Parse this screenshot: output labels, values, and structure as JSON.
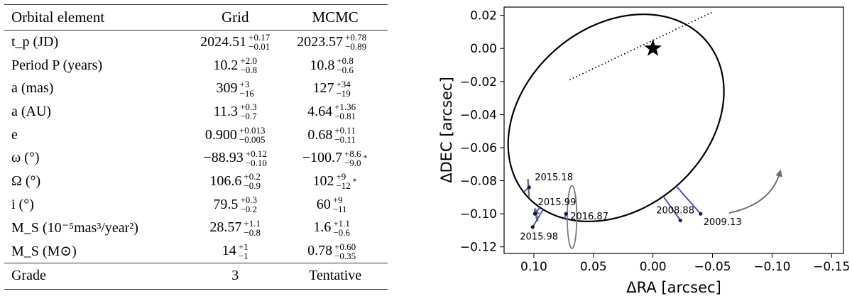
{
  "table": {
    "headers": [
      "Orbital element",
      "Grid",
      "MCMC"
    ],
    "rows": [
      {
        "label": "t_p (JD)",
        "grid": {
          "v": "2024.51",
          "up": "+0.17",
          "dn": "−0.01"
        },
        "mcmc": {
          "v": "2023.57",
          "up": "+0.78",
          "dn": "−0.89"
        },
        "flag": ""
      },
      {
        "label": "Period P (years)",
        "grid": {
          "v": "10.2",
          "up": "+2.0",
          "dn": "−0.8"
        },
        "mcmc": {
          "v": "10.8",
          "up": "+0.8",
          "dn": "−0.6"
        },
        "flag": ""
      },
      {
        "label": "a (mas)",
        "grid": {
          "v": "309",
          "up": "+3",
          "dn": "−16"
        },
        "mcmc": {
          "v": "127",
          "up": "+34",
          "dn": "−19"
        },
        "flag": ""
      },
      {
        "label": "a (AU)",
        "grid": {
          "v": "11.3",
          "up": "+0.3",
          "dn": "−0.7"
        },
        "mcmc": {
          "v": "4.64",
          "up": "+1.36",
          "dn": "−0.81"
        },
        "flag": ""
      },
      {
        "label": "e",
        "grid": {
          "v": "0.900",
          "up": "+0.013",
          "dn": "−0.005"
        },
        "mcmc": {
          "v": "0.68",
          "up": "+0.11",
          "dn": "−0.11"
        },
        "flag": ""
      },
      {
        "label": "ω (°)",
        "grid": {
          "v": "−88.93",
          "up": "+0.12",
          "dn": "−0.10"
        },
        "mcmc": {
          "v": "−100.7",
          "up": "+8.6",
          "dn": "−9.0"
        },
        "flag": "*"
      },
      {
        "label": "Ω (°)",
        "grid": {
          "v": "106.6",
          "up": "+0.2",
          "dn": "−0.9"
        },
        "mcmc": {
          "v": "102",
          "up": "+9",
          "dn": "−12"
        },
        "flag": "*"
      },
      {
        "label": "i (°)",
        "grid": {
          "v": "79.5",
          "up": "+0.3",
          "dn": "−0.2"
        },
        "mcmc": {
          "v": "60",
          "up": "+9",
          "dn": "−11"
        },
        "flag": ""
      },
      {
        "label": "M_S (10⁻⁵mas³/year²)",
        "grid": {
          "v": "28.57",
          "up": "+1.1",
          "dn": "−0.8"
        },
        "mcmc": {
          "v": "1.6",
          "up": "+1.1",
          "dn": "−0.6"
        },
        "flag": ""
      },
      {
        "label": "M_S (M⊙)",
        "grid": {
          "v": "14",
          "up": "+1",
          "dn": "−1"
        },
        "mcmc": {
          "v": "0.78",
          "up": "+0.60",
          "dn": "−0.35"
        },
        "flag": ""
      }
    ],
    "grade": {
      "label": "Grade",
      "grid": "3",
      "mcmc": "Tentative"
    }
  },
  "chart_data": {
    "type": "scatter",
    "xlabel": "ΔRA [arcsec]",
    "ylabel": "ΔDEC [arcsec]",
    "xlim": [
      0.125,
      -0.16
    ],
    "ylim": [
      -0.124,
      0.025
    ],
    "xticks": [
      0.1,
      0.05,
      0.0,
      -0.05,
      -0.1,
      -0.15
    ],
    "xtick_labels": [
      "0.10",
      "0.05",
      "0.00",
      "−0.05",
      "−0.10",
      "−0.15"
    ],
    "yticks": [
      0.02,
      0.0,
      -0.02,
      -0.04,
      -0.06,
      -0.08,
      -0.1,
      -0.12
    ],
    "ytick_labels": [
      "0.02",
      "0.00",
      "−0.02",
      "−0.04",
      "−0.06",
      "−0.08",
      "−0.10",
      "−0.12"
    ],
    "grid": false,
    "primary": {
      "x": 0.0,
      "y": 0.0,
      "marker": "star"
    },
    "orbit": {
      "type": "ellipse",
      "center": [
        0.031,
        -0.042
      ],
      "semi_axes": [
        0.093,
        0.059
      ],
      "rotation_deg": -17
    },
    "line_of_nodes": {
      "from": [
        0.07,
        -0.019
      ],
      "to": [
        -0.05,
        0.022
      ],
      "style": "dotted"
    },
    "observations": [
      {
        "epoch": "2015.18",
        "x": 0.104,
        "y": -0.084
      },
      {
        "epoch": "2015.99",
        "x": 0.099,
        "y": -0.1
      },
      {
        "epoch": "2016.87",
        "x": 0.073,
        "y": -0.1
      },
      {
        "epoch": "2015.98",
        "x": 0.101,
        "y": -0.108
      },
      {
        "epoch": "2008.88",
        "x": -0.023,
        "y": -0.104
      },
      {
        "epoch": "2009.13",
        "x": -0.04,
        "y": -0.1
      }
    ],
    "uncertainty_ellipse": {
      "center": [
        0.068,
        -0.102
      ],
      "semi_axes": [
        0.004,
        0.019
      ]
    },
    "colors": {
      "orbit": "#000000",
      "residual": "#3a45d6",
      "arrow": "#6e6e6e",
      "ellipse": "#7a7a7a"
    }
  }
}
